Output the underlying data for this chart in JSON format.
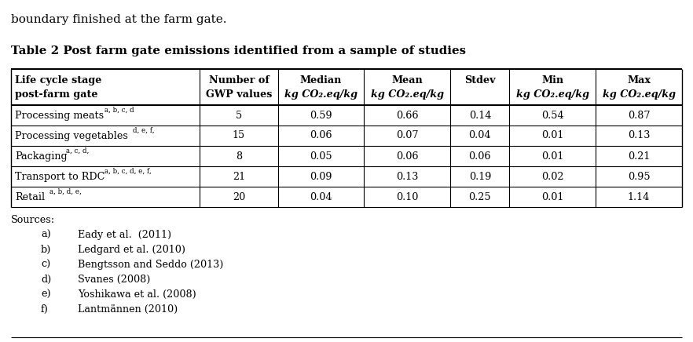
{
  "title": "Table 2 Post farm gate emissions identified from a sample of studies",
  "col_headers_line1": [
    "Life cycle stage",
    "Number of",
    "Median",
    "Mean",
    "Stdev",
    "Min",
    "Max"
  ],
  "col_headers_line2": [
    "post-farm gate",
    "GWP values",
    "kg CO₂.eq/kg",
    "kg CO₂.eq/kg",
    "",
    "kg CO₂.eq/kg",
    "kg CO₂.eq/kg"
  ],
  "col_headers_italic": [
    false,
    false,
    true,
    true,
    false,
    true,
    true
  ],
  "rows": [
    [
      "Processing meats",
      "a, b, c, d",
      "5",
      "0.59",
      "0.66",
      "0.14",
      "0.54",
      "0.87"
    ],
    [
      "Processing vegetables",
      "d, e, f,",
      "15",
      "0.06",
      "0.07",
      "0.04",
      "0.01",
      "0.13"
    ],
    [
      "Packaging",
      "a, c, d,",
      "8",
      "0.05",
      "0.06",
      "0.06",
      "0.01",
      "0.21"
    ],
    [
      "Transport to RDC",
      "a, b, c, d, e, f,",
      "21",
      "0.09",
      "0.13",
      "0.19",
      "0.02",
      "0.95"
    ],
    [
      "Retail",
      "a, b, d, e,",
      "20",
      "0.04",
      "0.10",
      "0.25",
      "0.01",
      "1.14"
    ]
  ],
  "sources_header": "Sources:",
  "sources_labels": [
    "a)",
    "b)",
    "c)",
    "d)",
    "e)",
    "f)"
  ],
  "sources_texts": [
    "Eady et al.  (2011)",
    "Ledgard et al. (2010)",
    "Bengtsson and Seddo (2013)",
    "Svanes (2008)",
    "Yoshikawa et al. (2008)",
    "Lantmännen (2010)"
  ],
  "intro_text": "boundary finished at the farm gate.",
  "col_widths_pts": [
    230,
    95,
    105,
    105,
    72,
    105,
    105
  ],
  "bg_color": "#ffffff",
  "text_color": "#000000",
  "font_size": 9.2,
  "intro_font_size": 11.0,
  "title_font_size": 10.8
}
